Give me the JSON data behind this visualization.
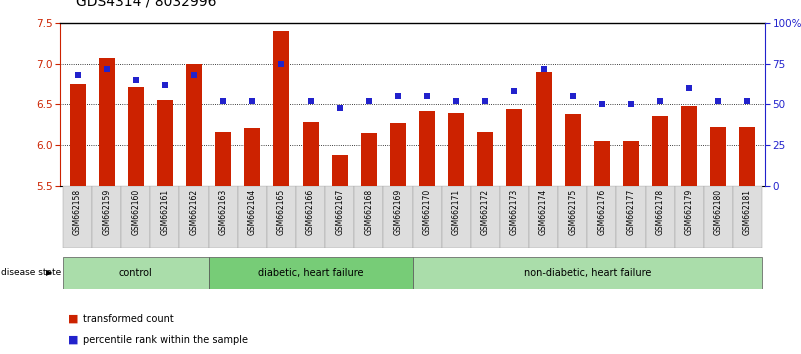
{
  "title": "GDS4314 / 8032996",
  "samples": [
    "GSM662158",
    "GSM662159",
    "GSM662160",
    "GSM662161",
    "GSM662162",
    "GSM662163",
    "GSM662164",
    "GSM662165",
    "GSM662166",
    "GSM662167",
    "GSM662168",
    "GSM662169",
    "GSM662170",
    "GSM662171",
    "GSM662172",
    "GSM662173",
    "GSM662174",
    "GSM662175",
    "GSM662176",
    "GSM662177",
    "GSM662178",
    "GSM662179",
    "GSM662180",
    "GSM662181"
  ],
  "bar_values": [
    6.75,
    7.07,
    6.72,
    6.55,
    7.0,
    6.16,
    6.21,
    7.4,
    6.28,
    5.88,
    6.15,
    6.27,
    6.42,
    6.4,
    6.16,
    6.44,
    6.9,
    6.38,
    6.05,
    6.05,
    6.36,
    6.48,
    6.22,
    6.22
  ],
  "percentile_values": [
    68,
    72,
    65,
    62,
    68,
    52,
    52,
    75,
    52,
    48,
    52,
    55,
    55,
    52,
    52,
    58,
    72,
    55,
    50,
    50,
    52,
    60,
    52,
    52
  ],
  "groups": [
    {
      "label": "control",
      "start": 0,
      "end": 5
    },
    {
      "label": "diabetic, heart failure",
      "start": 5,
      "end": 12
    },
    {
      "label": "non-diabetic, heart failure",
      "start": 12,
      "end": 24
    }
  ],
  "group_colors": [
    "#aaddaa",
    "#77cc77",
    "#aaddaa"
  ],
  "ylim_left": [
    5.5,
    7.5
  ],
  "ylim_right": [
    0,
    100
  ],
  "yticks_left": [
    5.5,
    6.0,
    6.5,
    7.0,
    7.5
  ],
  "yticks_right": [
    0,
    25,
    50,
    75,
    100
  ],
  "ytick_labels_right": [
    "0",
    "25",
    "50",
    "75",
    "100%"
  ],
  "bar_color": "#cc2200",
  "percentile_color": "#2222cc",
  "bar_width": 0.55,
  "legend_bar_label": "transformed count",
  "legend_pct_label": "percentile rank within the sample",
  "disease_state_label": "disease state",
  "title_fontsize": 10,
  "axis_fontsize": 7.5,
  "tick_label_fontsize": 6
}
